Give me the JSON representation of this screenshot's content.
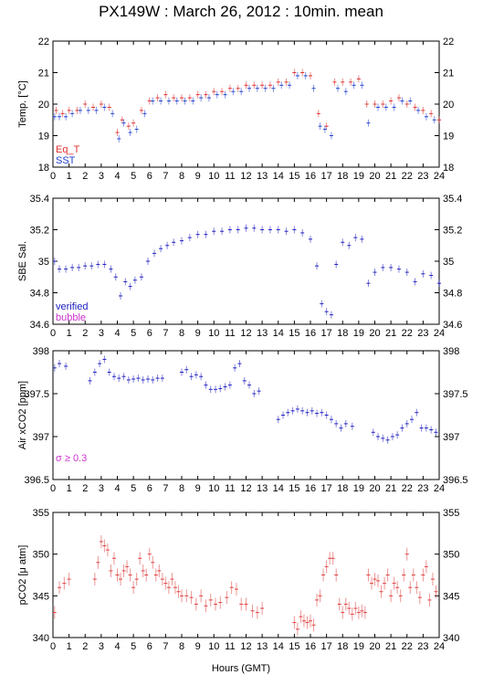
{
  "title": "PX149W : March 26, 2012 : 10min. mean",
  "xlabel": "Hours (GMT)",
  "colors": {
    "eq_t": "#e03030",
    "sst": "#2040d0",
    "verified": "#2020c0",
    "bubble": "#cc33cc",
    "pco2": "#e04040"
  },
  "chart_data": [
    {
      "type": "scatter",
      "ylabel": "Temp. [°C]",
      "xlim": [
        0,
        24
      ],
      "ylim": [
        18,
        22
      ],
      "yticks": [
        18,
        19,
        20,
        21,
        22
      ],
      "xticks": [
        0,
        1,
        2,
        3,
        4,
        5,
        6,
        7,
        8,
        9,
        10,
        11,
        12,
        13,
        14,
        15,
        16,
        17,
        18,
        19,
        20,
        21,
        22,
        23,
        24
      ],
      "legend": [
        "Eq_T",
        "SST"
      ],
      "series": [
        {
          "name": "Eq_T",
          "color": "#e03030",
          "x": [
            0.2,
            0.6,
            1.0,
            1.5,
            2.0,
            2.5,
            3.0,
            3.5,
            4.0,
            4.3,
            4.7,
            5.0,
            5.5,
            6.0,
            6.5,
            7.0,
            7.5,
            8.0,
            8.5,
            9.0,
            9.5,
            10.0,
            10.5,
            11.0,
            11.5,
            12.0,
            12.5,
            13.0,
            13.5,
            14.0,
            14.5,
            15.0,
            15.5,
            16.0,
            16.5,
            17.0,
            17.5,
            18.0,
            18.5,
            19.0,
            19.5,
            20.0,
            20.5,
            21.0,
            21.5,
            22.0,
            22.5,
            23.0,
            23.5,
            24.0
          ],
          "y": [
            19.8,
            19.7,
            19.8,
            19.8,
            20.0,
            19.9,
            20.0,
            19.9,
            19.1,
            19.5,
            19.3,
            19.4,
            19.8,
            20.1,
            20.2,
            20.3,
            20.2,
            20.2,
            20.2,
            20.3,
            20.3,
            20.4,
            20.4,
            20.5,
            20.5,
            20.6,
            20.6,
            20.6,
            20.6,
            20.7,
            20.7,
            21.0,
            21.0,
            20.9,
            19.7,
            19.3,
            20.7,
            20.7,
            20.7,
            20.8,
            20.0,
            20.0,
            20.0,
            20.1,
            20.2,
            20.0,
            19.9,
            19.8,
            19.7,
            19.5
          ]
        },
        {
          "name": "SST",
          "color": "#2040d0",
          "x": [
            0.1,
            0.4,
            0.8,
            1.2,
            1.7,
            2.2,
            2.7,
            3.2,
            3.7,
            4.1,
            4.4,
            4.8,
            5.2,
            5.7,
            6.2,
            6.7,
            7.2,
            7.7,
            8.2,
            8.7,
            9.2,
            9.7,
            10.2,
            10.7,
            11.2,
            11.7,
            12.2,
            12.7,
            13.2,
            13.7,
            14.2,
            14.7,
            15.2,
            15.7,
            16.2,
            16.6,
            16.9,
            17.3,
            17.7,
            18.2,
            18.7,
            19.2,
            19.6,
            20.2,
            20.7,
            21.2,
            21.7,
            22.2,
            22.7,
            23.2,
            23.7
          ],
          "y": [
            19.6,
            19.6,
            19.6,
            19.7,
            19.8,
            19.8,
            19.8,
            19.9,
            19.7,
            18.9,
            19.4,
            19.1,
            19.2,
            19.7,
            20.1,
            20.1,
            20.1,
            20.1,
            20.1,
            20.1,
            20.2,
            20.2,
            20.3,
            20.3,
            20.4,
            20.4,
            20.5,
            20.5,
            20.5,
            20.5,
            20.6,
            20.6,
            20.9,
            20.9,
            20.5,
            19.3,
            19.2,
            19.0,
            20.5,
            20.4,
            20.6,
            20.6,
            19.4,
            19.9,
            19.9,
            19.9,
            20.1,
            20.1,
            19.8,
            19.6,
            19.5
          ]
        }
      ]
    },
    {
      "type": "scatter",
      "ylabel": "SBE Sal.",
      "xlim": [
        0,
        24
      ],
      "ylim": [
        34.6,
        35.4
      ],
      "yticks": [
        34.6,
        34.8,
        35,
        35.2,
        35.4
      ],
      "yticklabels": [
        "34.6",
        "34.8",
        "35",
        "35.2",
        "35.4"
      ],
      "xticks": [
        0,
        1,
        2,
        3,
        4,
        5,
        6,
        7,
        8,
        9,
        10,
        11,
        12,
        13,
        14,
        15,
        16,
        17,
        18,
        19,
        20,
        21,
        22,
        23,
        24
      ],
      "legend": [
        "verified",
        "bubble"
      ],
      "series": [
        {
          "name": "verified",
          "color": "#2020c0",
          "x": [
            0.1,
            0.4,
            0.8,
            1.2,
            1.6,
            2.0,
            2.4,
            2.8,
            3.2,
            3.6,
            3.9,
            4.2,
            4.5,
            4.8,
            5.1,
            5.5,
            5.9,
            6.3,
            6.7,
            7.1,
            7.5,
            8.0,
            8.5,
            9.0,
            9.5,
            10.0,
            10.5,
            11.0,
            11.5,
            12.0,
            12.5,
            13.0,
            13.5,
            14.0,
            14.5,
            15.0,
            15.5,
            16.0,
            16.4,
            16.7,
            17.0,
            17.3,
            17.6,
            18.0,
            18.4,
            18.8,
            19.2,
            19.6,
            20.0,
            20.5,
            21.0,
            21.5,
            22.0,
            22.5,
            23.0,
            23.5,
            24.0
          ],
          "y": [
            35.0,
            34.95,
            34.95,
            34.96,
            34.96,
            34.97,
            34.97,
            34.98,
            34.98,
            34.95,
            34.9,
            34.78,
            34.87,
            34.84,
            34.88,
            34.9,
            35.0,
            35.05,
            35.08,
            35.1,
            35.12,
            35.13,
            35.15,
            35.17,
            35.17,
            35.19,
            35.19,
            35.2,
            35.2,
            35.21,
            35.21,
            35.2,
            35.2,
            35.2,
            35.19,
            35.2,
            35.18,
            35.14,
            34.97,
            34.73,
            34.68,
            34.66,
            34.98,
            35.12,
            35.1,
            35.15,
            35.14,
            34.86,
            34.93,
            34.96,
            34.96,
            34.95,
            34.93,
            34.87,
            34.92,
            34.91,
            34.86
          ]
        }
      ]
    },
    {
      "type": "scatter",
      "ylabel": "Air xCO2 [ppm]",
      "xlim": [
        0,
        24
      ],
      "ylim": [
        396.5,
        398
      ],
      "yticks": [
        396.5,
        397,
        397.5,
        398
      ],
      "xticks": [
        0,
        1,
        2,
        3,
        4,
        5,
        6,
        7,
        8,
        9,
        10,
        11,
        12,
        13,
        14,
        15,
        16,
        17,
        18,
        19,
        20,
        21,
        22,
        23,
        24
      ],
      "annotation": "σ ≥ 0.3",
      "series": [
        {
          "name": "Air xCO2",
          "color": "#2020c0",
          "x": [
            0.1,
            0.4,
            0.8,
            2.3,
            2.6,
            2.9,
            3.2,
            3.5,
            3.8,
            4.1,
            4.4,
            4.7,
            5.0,
            5.3,
            5.6,
            5.9,
            6.2,
            6.5,
            6.8,
            8.0,
            8.3,
            8.6,
            8.9,
            9.2,
            9.5,
            9.8,
            10.1,
            10.4,
            10.7,
            11.0,
            11.3,
            11.6,
            11.9,
            12.2,
            12.5,
            12.8,
            14.0,
            14.3,
            14.6,
            14.9,
            15.2,
            15.5,
            15.8,
            16.1,
            16.4,
            16.7,
            17.0,
            17.3,
            17.6,
            17.9,
            18.2,
            18.6,
            19.9,
            20.2,
            20.5,
            20.8,
            21.1,
            21.4,
            21.7,
            22.0,
            22.3,
            22.6,
            22.9,
            23.2,
            23.5,
            23.8
          ],
          "y": [
            397.8,
            397.85,
            397.82,
            397.65,
            397.75,
            397.85,
            397.9,
            397.75,
            397.7,
            397.68,
            397.7,
            397.66,
            397.67,
            397.68,
            397.66,
            397.67,
            397.66,
            397.68,
            397.68,
            397.75,
            397.78,
            397.7,
            397.72,
            397.7,
            397.6,
            397.55,
            397.55,
            397.56,
            397.58,
            397.6,
            397.8,
            397.85,
            397.65,
            397.6,
            397.5,
            397.53,
            397.2,
            397.25,
            397.28,
            397.3,
            397.32,
            397.3,
            397.28,
            397.3,
            397.27,
            397.28,
            397.25,
            397.2,
            397.15,
            397.1,
            397.15,
            397.12,
            397.05,
            397.0,
            396.98,
            396.96,
            397.0,
            397.02,
            397.1,
            397.15,
            397.2,
            397.28,
            397.1,
            397.1,
            397.08,
            397.05
          ]
        }
      ]
    },
    {
      "type": "scatter",
      "ylabel": "pCO2 [μ atm]",
      "xlim": [
        0,
        24
      ],
      "ylim": [
        340,
        355
      ],
      "yticks": [
        340,
        345,
        350,
        355
      ],
      "xticks": [
        0,
        1,
        2,
        3,
        4,
        5,
        6,
        7,
        8,
        9,
        10,
        11,
        12,
        13,
        14,
        15,
        16,
        17,
        18,
        19,
        20,
        21,
        22,
        23,
        24
      ],
      "series": [
        {
          "name": "pCO2",
          "color": "#e04040",
          "x": [
            0.1,
            0.4,
            0.7,
            1.0,
            2.6,
            2.8,
            3.0,
            3.2,
            3.4,
            3.6,
            3.8,
            4.0,
            4.2,
            4.4,
            4.6,
            4.8,
            5.0,
            5.2,
            5.4,
            5.6,
            5.8,
            6.0,
            6.2,
            6.4,
            6.6,
            6.8,
            7.0,
            7.2,
            7.4,
            7.6,
            7.8,
            8.0,
            8.3,
            8.6,
            8.9,
            9.2,
            9.5,
            9.8,
            10.1,
            10.4,
            10.8,
            11.1,
            11.4,
            11.7,
            12.0,
            12.4,
            12.7,
            13.0,
            15.0,
            15.2,
            15.4,
            15.6,
            15.8,
            16.0,
            16.2,
            16.4,
            16.6,
            16.8,
            17.0,
            17.2,
            17.4,
            17.6,
            17.8,
            18.0,
            18.2,
            18.4,
            18.6,
            18.8,
            19.0,
            19.2,
            19.4,
            19.6,
            19.8,
            20.0,
            20.2,
            20.4,
            20.6,
            20.8,
            21.0,
            21.2,
            21.4,
            21.6,
            21.8,
            22.0,
            22.2,
            22.4,
            22.6,
            22.8,
            23.0,
            23.2,
            23.4,
            23.6,
            23.8
          ],
          "y": [
            343.0,
            346.0,
            346.5,
            347.0,
            347.0,
            349.0,
            351.5,
            351.0,
            350.5,
            348.0,
            349.5,
            347.5,
            347.0,
            348.0,
            348.5,
            347.5,
            346.0,
            347.0,
            349.5,
            348.0,
            347.5,
            350.0,
            349.0,
            347.5,
            348.0,
            347.0,
            346.5,
            346.0,
            347.0,
            346.0,
            345.5,
            345.0,
            345.0,
            344.8,
            344.0,
            345.0,
            343.8,
            344.5,
            344.0,
            344.2,
            344.8,
            346.0,
            345.8,
            344.0,
            344.0,
            343.2,
            343.0,
            343.5,
            341.8,
            341.0,
            342.5,
            342.0,
            341.8,
            342.0,
            341.5,
            344.5,
            345.0,
            347.5,
            348.5,
            349.5,
            349.5,
            347.5,
            344.0,
            343.0,
            344.0,
            343.5,
            342.8,
            343.5,
            343.0,
            343.2,
            343.0,
            347.5,
            346.5,
            347.0,
            346.8,
            345.5,
            346.5,
            347.5,
            345.0,
            346.5,
            346.0,
            345.0,
            347.5,
            350.0,
            346.0,
            347.5,
            346.0,
            344.8,
            347.5,
            348.5,
            344.5,
            347.0,
            345.5
          ]
        }
      ]
    }
  ]
}
